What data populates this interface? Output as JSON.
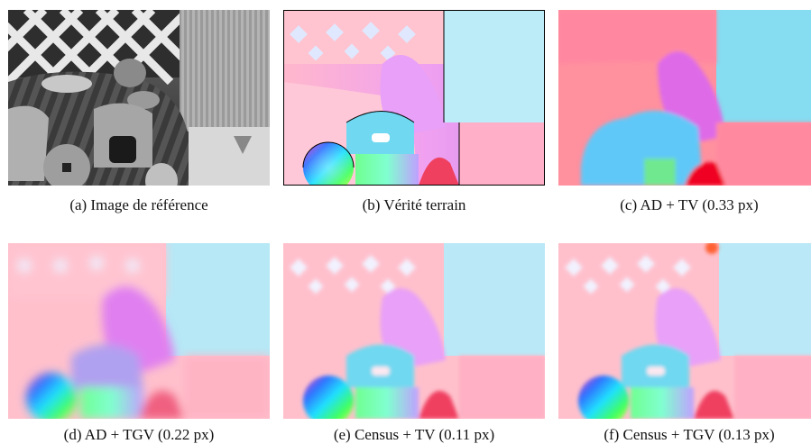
{
  "figure": {
    "captions": [
      "(a) Image de référence",
      "(b) Vérité terrain",
      "(c) AD + TV (0.33 px)",
      "(d) AD + TGV (0.22 px)",
      "(e) Census + TV (0.11 px)",
      "(f) Census + TGV (0.13 px)"
    ]
  }
}
